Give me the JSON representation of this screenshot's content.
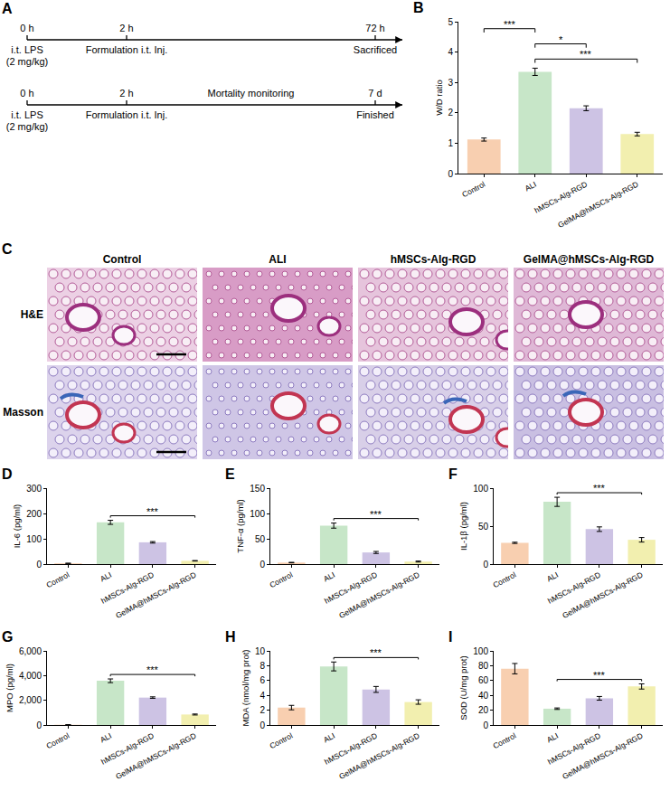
{
  "panel_A": {
    "letter": "A",
    "timelines": [
      {
        "events": [
          {
            "time": "0 h",
            "labels": [
              "i.t. LPS",
              "(2 mg/kg)"
            ]
          },
          {
            "time": "2 h",
            "labels": [
              "Formulation i.t. Inj."
            ]
          },
          {
            "time": "72 h",
            "labels": [
              "Sacrificed"
            ]
          }
        ]
      },
      {
        "events": [
          {
            "time": "0 h",
            "labels": [
              "i.t. LPS",
              "(2 mg/kg)"
            ]
          },
          {
            "time": "2 h",
            "labels": [
              "Formulation i.t. Inj."
            ]
          },
          {
            "time": "7 d",
            "labels": [
              "Finished"
            ]
          }
        ],
        "span_label": "Mortality monitoring"
      }
    ]
  },
  "panel_C": {
    "letter": "C",
    "columns": [
      "Control",
      "ALI",
      "hMSCs-Alg-RGD",
      "GelMA@hMSCs-Alg-RGD"
    ],
    "rows": [
      "H&E",
      "Masson"
    ]
  },
  "chart_data": [
    {
      "panel": "B",
      "type": "bar",
      "categories": [
        "Control",
        "ALI",
        "hMSCs-Alg-RGD",
        "GelMA@hMSCs-Alg-RGD"
      ],
      "values": [
        1.12,
        3.35,
        2.15,
        1.3
      ],
      "errors": [
        0.05,
        0.12,
        0.08,
        0.06
      ],
      "colors": [
        "#f8cfb0",
        "#c7e6c8",
        "#cdc3e4",
        "#f2efaf"
      ],
      "y_title": "W/D ratio",
      "ylim": [
        0,
        5
      ],
      "yticks": [
        0,
        1,
        2,
        3,
        4,
        5
      ],
      "grid": false,
      "significance": [
        {
          "from": "Control",
          "to": "ALI",
          "label": "***"
        },
        {
          "from": "ALI",
          "to": "hMSCs-Alg-RGD",
          "label": "*"
        },
        {
          "from": "ALI",
          "to": "GelMA@hMSCs-Alg-RGD",
          "label": "***"
        }
      ]
    },
    {
      "panel": "D",
      "type": "bar",
      "categories": [
        "Control",
        "ALI",
        "hMSCs-Alg-RGD",
        "GelMA@hMSCs-Alg-RGD"
      ],
      "values": [
        3,
        165,
        86,
        13
      ],
      "errors": [
        0.5,
        8,
        3,
        1
      ],
      "colors": [
        "#f8cfb0",
        "#c7e6c8",
        "#cdc3e4",
        "#f2efaf"
      ],
      "y_title": "IL-6 (pg/ml)",
      "ylim": [
        0,
        300
      ],
      "yticks": [
        0,
        100,
        200,
        300
      ],
      "grid": false,
      "significance": [
        {
          "from": "ALI",
          "to": "GelMA@hMSCs-Alg-RGD",
          "label": "***"
        }
      ]
    },
    {
      "panel": "E",
      "type": "bar",
      "categories": [
        "Control",
        "ALI",
        "hMSCs-Alg-RGD",
        "GelMA@hMSCs-Alg-RGD"
      ],
      "values": [
        3,
        76,
        23,
        5
      ],
      "errors": [
        0.5,
        5,
        2,
        1
      ],
      "colors": [
        "#f8cfb0",
        "#c7e6c8",
        "#cdc3e4",
        "#f2efaf"
      ],
      "y_title": "TNF-α (pg/ml)",
      "ylim": [
        0,
        150
      ],
      "yticks": [
        0,
        50,
        100,
        150
      ],
      "grid": false,
      "significance": [
        {
          "from": "ALI",
          "to": "GelMA@hMSCs-Alg-RGD",
          "label": "***"
        }
      ]
    },
    {
      "panel": "F",
      "type": "bar",
      "categories": [
        "Control",
        "ALI",
        "hMSCs-Alg-RGD",
        "GelMA@hMSCs-Alg-RGD"
      ],
      "values": [
        28,
        82,
        46,
        32
      ],
      "errors": [
        0.8,
        6,
        3,
        3
      ],
      "colors": [
        "#f8cfb0",
        "#c7e6c8",
        "#cdc3e4",
        "#f2efaf"
      ],
      "y_title": "IL-1β (pg/ml)",
      "ylim": [
        0,
        100
      ],
      "yticks": [
        0,
        50,
        100
      ],
      "grid": false,
      "significance": [
        {
          "from": "ALI",
          "to": "GelMA@hMSCs-Alg-RGD",
          "label": "***"
        }
      ]
    },
    {
      "panel": "G",
      "type": "bar",
      "categories": [
        "Control",
        "ALI",
        "hMSCs-Alg-RGD",
        "GelMA@hMSCs-Alg-RGD"
      ],
      "values": [
        20,
        3580,
        2220,
        850
      ],
      "errors": [
        5,
        150,
        60,
        40
      ],
      "colors": [
        "#f8cfb0",
        "#c7e6c8",
        "#cdc3e4",
        "#f2efaf"
      ],
      "y_title": "MPO (pg/ml)",
      "ylim": [
        0,
        6000
      ],
      "yticks": [
        0,
        {
          "value": 2000,
          "label": "2,000"
        },
        {
          "value": 4000,
          "label": "4,000"
        },
        {
          "value": 6000,
          "label": "6,000"
        }
      ],
      "grid": false,
      "significance": [
        {
          "from": "ALI",
          "to": "GelMA@hMSCs-Alg-RGD",
          "label": "***"
        }
      ]
    },
    {
      "panel": "H",
      "type": "bar",
      "categories": [
        "Control",
        "ALI",
        "hMSCs-Alg-RGD",
        "GelMA@hMSCs-Alg-RGD"
      ],
      "values": [
        2.35,
        7.9,
        4.8,
        3.1
      ],
      "errors": [
        0.3,
        0.6,
        0.4,
        0.3
      ],
      "colors": [
        "#f8cfb0",
        "#c7e6c8",
        "#cdc3e4",
        "#f2efaf"
      ],
      "y_title": "MDA (nmol/mg prot)",
      "ylim": [
        0,
        10
      ],
      "yticks": [
        0,
        2,
        4,
        6,
        8,
        10
      ],
      "grid": false,
      "significance": [
        {
          "from": "ALI",
          "to": "GelMA@hMSCs-Alg-RGD",
          "label": "***"
        }
      ]
    },
    {
      "panel": "I",
      "type": "bar",
      "categories": [
        "Control",
        "ALI",
        "hMSCs-Alg-RGD",
        "GelMA@hMSCs-Alg-RGD"
      ],
      "values": [
        76,
        22,
        36,
        52
      ],
      "errors": [
        7,
        1,
        2.5,
        3.5
      ],
      "colors": [
        "#f8cfb0",
        "#c7e6c8",
        "#cdc3e4",
        "#f2efaf"
      ],
      "y_title": "SOD (U/mg prot)",
      "ylim": [
        0,
        100
      ],
      "yticks": [
        0,
        20,
        40,
        60,
        80,
        100
      ],
      "grid": false,
      "significance": [
        {
          "from": "ALI",
          "to": "GelMA@hMSCs-Alg-RGD",
          "label": "***"
        }
      ]
    }
  ]
}
